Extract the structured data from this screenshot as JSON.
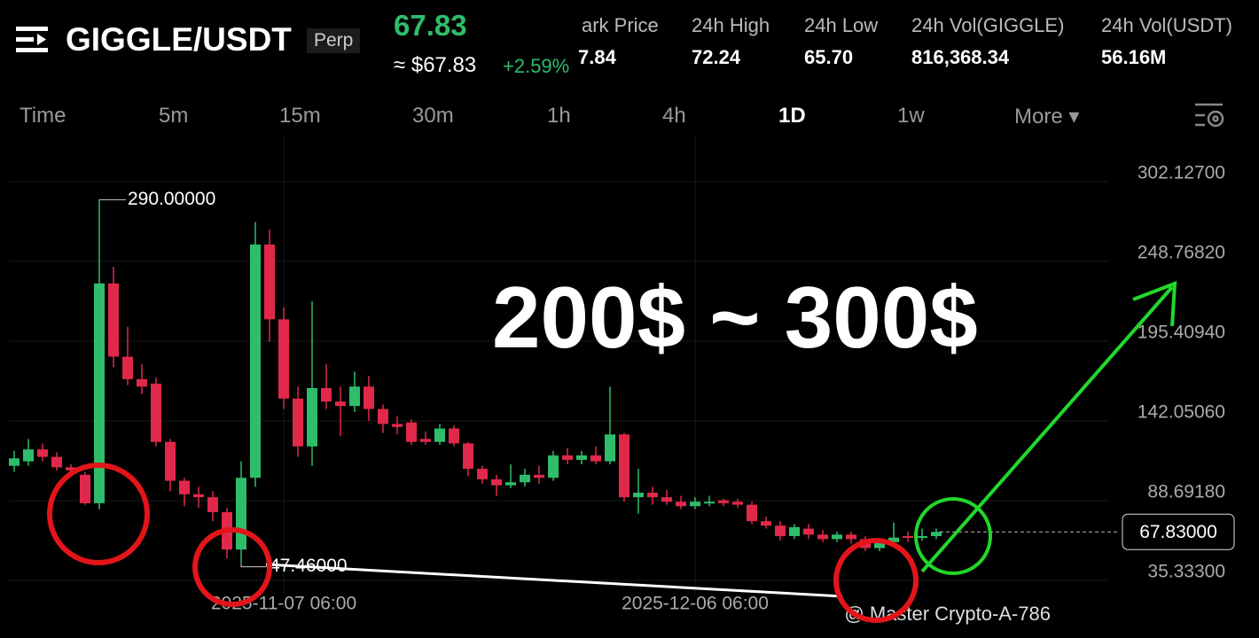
{
  "header": {
    "symbol": "GIGGLE/USDT",
    "tag": "Perp",
    "price": "67.83",
    "price_usd": "≈ $67.83",
    "change": "+2.59%",
    "stats": [
      {
        "label": "ark Price",
        "value": "7.84"
      },
      {
        "label": "24h High",
        "value": "72.24"
      },
      {
        "label": "24h Low",
        "value": "65.70"
      },
      {
        "label": "24h Vol(GIGGLE)",
        "value": "816,368.34"
      },
      {
        "label": "24h Vol(USDT)",
        "value": "56.16M"
      }
    ]
  },
  "tabs": {
    "items": [
      "Time",
      "5m",
      "15m",
      "30m",
      "1h",
      "4h",
      "1D",
      "1w",
      "More ▾"
    ],
    "active": "1D"
  },
  "chart_data": {
    "type": "candlestick",
    "up_color": "#2ebd6b",
    "down_color": "#e0294a",
    "categories": [
      null,
      null,
      null,
      null,
      null,
      null,
      null,
      null,
      null,
      null,
      null,
      null,
      null,
      null,
      null,
      null,
      null,
      null,
      null,
      "2025-11-07 06:00",
      null,
      null,
      null,
      null,
      null,
      null,
      null,
      null,
      null,
      null,
      null,
      null,
      null,
      null,
      null,
      null,
      null,
      null,
      null,
      null,
      null,
      null,
      null,
      null,
      null,
      null,
      null,
      null,
      "2025-12-06 06:00",
      null,
      null,
      null,
      null,
      null,
      null,
      null,
      null,
      null,
      null,
      null,
      null,
      null,
      null,
      null,
      null,
      null
    ],
    "open": [
      112,
      115,
      123,
      118,
      111,
      106,
      87,
      234,
      185,
      170,
      167,
      128,
      102,
      93,
      91,
      81,
      56,
      104,
      260,
      210,
      157,
      125,
      164,
      155,
      152,
      165,
      150,
      140,
      141,
      130,
      128,
      137,
      127,
      110,
      103,
      99,
      101,
      106,
      104,
      119,
      116,
      119,
      115,
      133,
      91,
      94,
      91,
      88,
      85,
      87,
      89,
      88,
      86,
      75,
      72,
      65,
      70,
      66,
      63,
      66,
      63,
      57,
      61,
      65,
      64,
      65
    ],
    "high": [
      122,
      130,
      127,
      121,
      113,
      108,
      290,
      245,
      205,
      180,
      171,
      130,
      104,
      98,
      95,
      84,
      115,
      275,
      270,
      218,
      165,
      222,
      180,
      165,
      175,
      172,
      153,
      145,
      143,
      135,
      140,
      139,
      128,
      112,
      106,
      113,
      110,
      112,
      122,
      124,
      122,
      125,
      165,
      134,
      110,
      98,
      96,
      92,
      91,
      92,
      90,
      90,
      88,
      78,
      75,
      73,
      73,
      69,
      68,
      68,
      65,
      63,
      74,
      68,
      70,
      70
    ],
    "low": [
      108,
      112,
      115,
      109,
      107,
      86,
      83,
      178,
      166,
      160,
      125,
      95,
      85,
      84,
      75,
      50,
      47.46,
      98,
      195,
      150,
      118,
      112,
      150,
      132,
      148,
      142,
      134,
      133,
      126,
      126,
      126,
      125,
      105,
      100,
      92,
      97,
      98,
      100,
      102,
      113,
      113,
      113,
      113,
      88,
      80,
      86,
      86,
      83,
      83,
      85,
      85,
      84,
      73,
      70,
      62,
      63,
      63,
      61,
      61,
      60,
      55,
      55,
      60,
      61,
      62,
      63
    ],
    "close": [
      117,
      123,
      118,
      111,
      109,
      87,
      234,
      185,
      170,
      165,
      128,
      102,
      93,
      91,
      81,
      56,
      104,
      260,
      210,
      157,
      125,
      164,
      155,
      152,
      165,
      150,
      140,
      138,
      128,
      128,
      137,
      127,
      110,
      103,
      99,
      101,
      106,
      104,
      119,
      116,
      119,
      115,
      133,
      91,
      94,
      91,
      88,
      85,
      88,
      88,
      87,
      86,
      75,
      72,
      65,
      71,
      66,
      63,
      66,
      63,
      57,
      61,
      64,
      64,
      65,
      67.83
    ],
    "ylim": [
      8.7,
      331.7
    ],
    "yticks": [
      {
        "value": 302.127,
        "label": "302.12700"
      },
      {
        "value": 248.7682,
        "label": "248.76820"
      },
      {
        "value": 195.4094,
        "label": "195.40940"
      },
      {
        "value": 142.0506,
        "label": "142.05060"
      },
      {
        "value": 88.6918,
        "label": "88.69180"
      },
      {
        "value": 35.333,
        "label": "35.33300"
      }
    ],
    "price_line": {
      "value": 67.83,
      "label": "67.83000"
    },
    "annotations": [
      {
        "value": 290,
        "label": "290.00000"
      },
      {
        "value": 47.46,
        "label": "47.46000"
      }
    ],
    "headline": "200$ ~ 300$",
    "watermark": "@ Master Crypto-A-786"
  }
}
